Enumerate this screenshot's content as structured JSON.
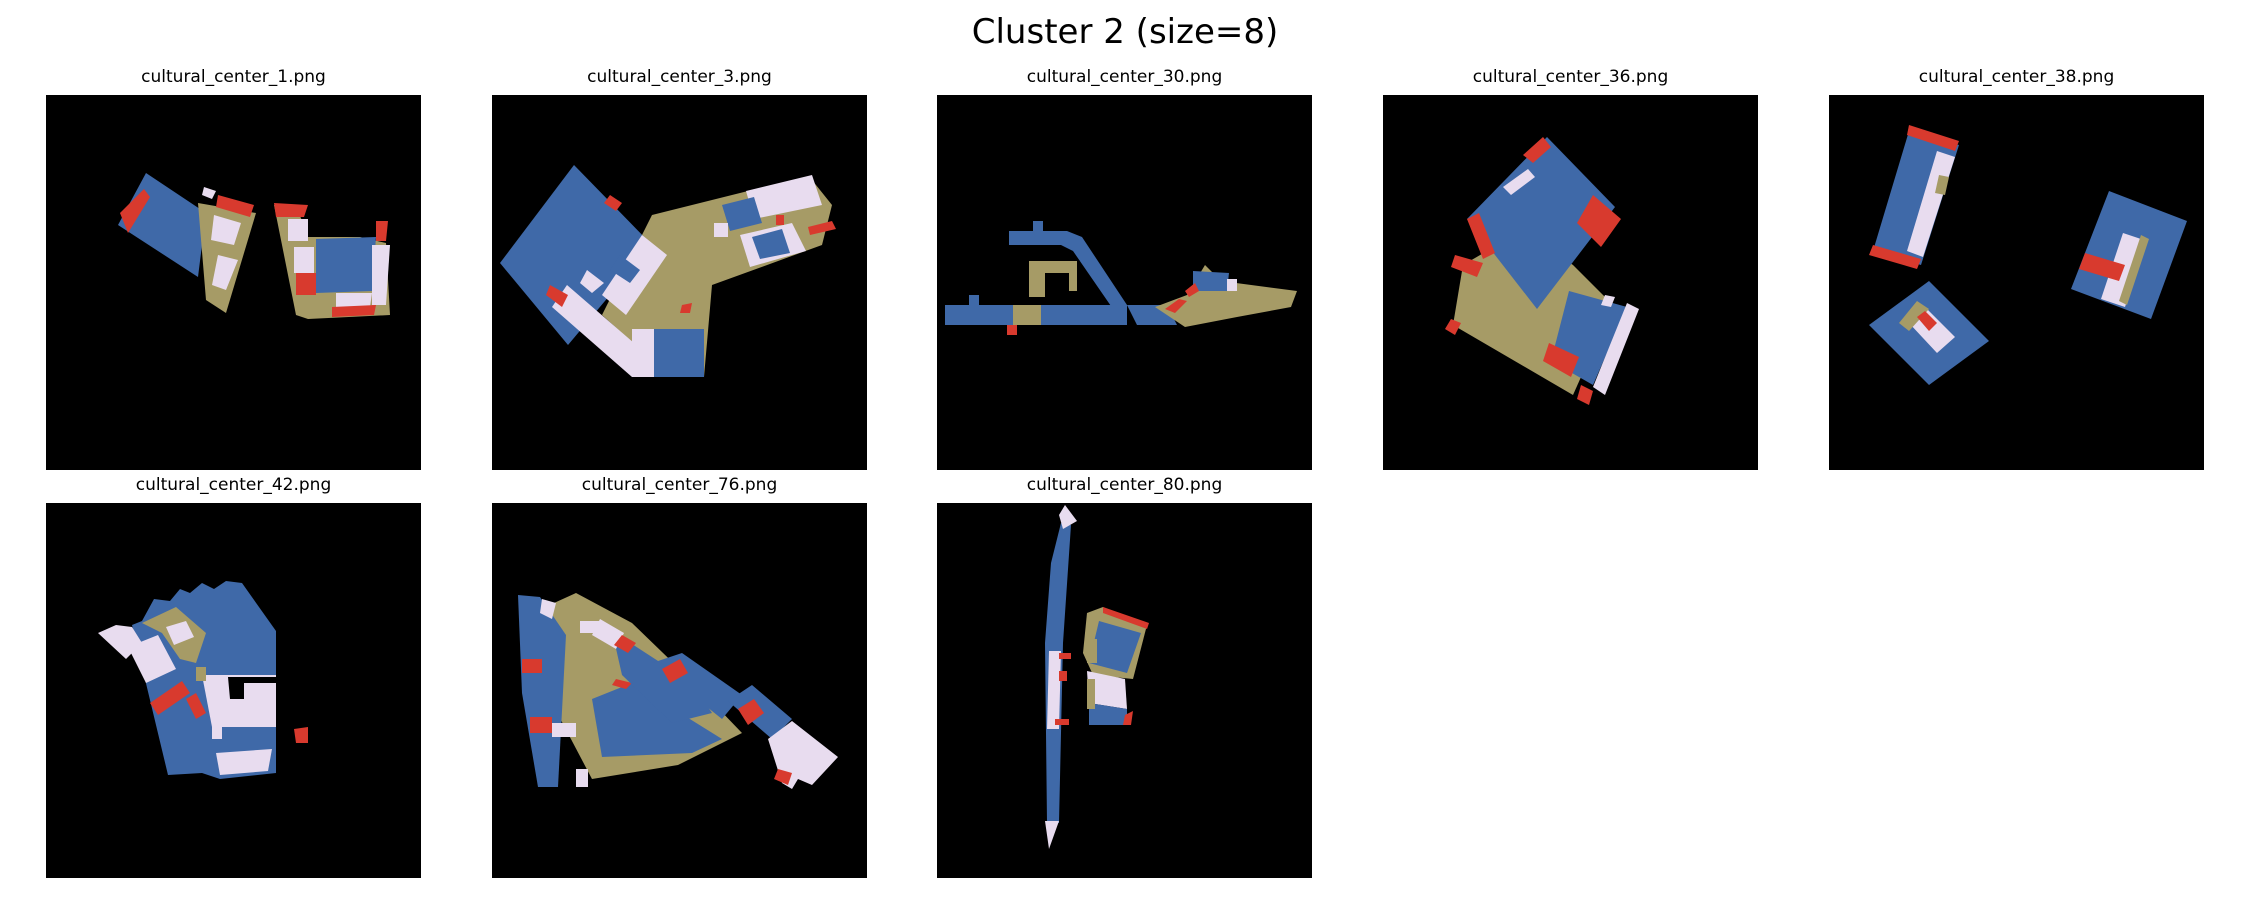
{
  "figure": {
    "title": "Cluster 2 (size=8)"
  },
  "colors": {
    "background": "#000000",
    "blue": "#3f69a8",
    "tan": "#a69b66",
    "red": "#d83a2e",
    "lavender": "#e8dcef"
  },
  "panels": [
    {
      "title": "cultural_center_1.png"
    },
    {
      "title": "cultural_center_3.png"
    },
    {
      "title": "cultural_center_30.png"
    },
    {
      "title": "cultural_center_36.png"
    },
    {
      "title": "cultural_center_38.png"
    },
    {
      "title": "cultural_center_42.png"
    },
    {
      "title": "cultural_center_76.png"
    },
    {
      "title": "cultural_center_80.png"
    }
  ]
}
